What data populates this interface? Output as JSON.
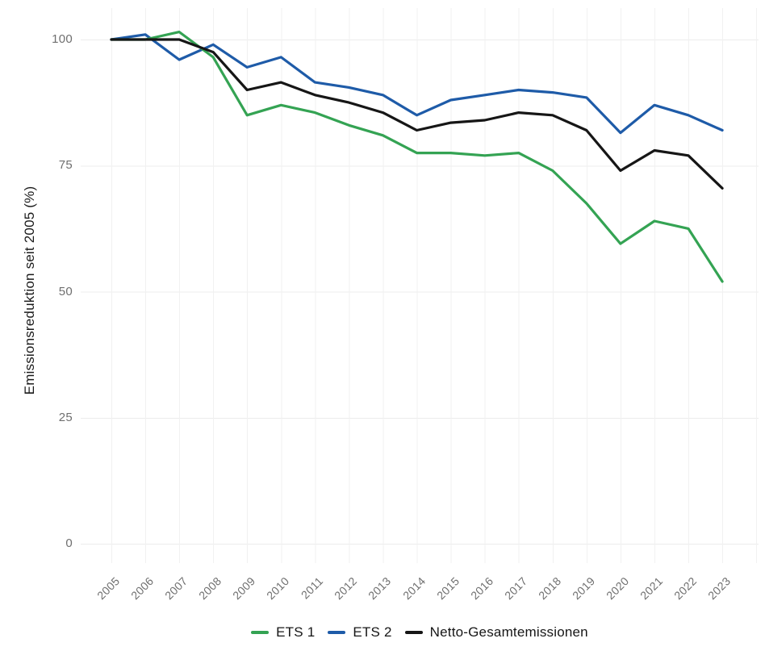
{
  "chart_data": {
    "type": "line",
    "title": "",
    "xlabel": "",
    "ylabel": "Emissionsreduktion seit 2005 (%)",
    "x": [
      2005,
      2006,
      2007,
      2008,
      2009,
      2010,
      2011,
      2012,
      2013,
      2014,
      2015,
      2016,
      2017,
      2018,
      2019,
      2020,
      2021,
      2022,
      2023
    ],
    "series": [
      {
        "name": "ETS 1",
        "color": "#34A353",
        "values": [
          100,
          100,
          101.5,
          96.5,
          85,
          87,
          85.5,
          83,
          81,
          77.5,
          77.5,
          77,
          77.5,
          74,
          67.5,
          59.5,
          64,
          62.5,
          52
        ]
      },
      {
        "name": "ETS 2",
        "color": "#1E5BA8",
        "values": [
          100,
          101,
          96,
          99,
          94.5,
          96.5,
          91.5,
          90.5,
          89,
          85,
          88,
          89,
          90,
          89.5,
          88.5,
          81.5,
          87,
          85,
          82
        ]
      },
      {
        "name": "Netto-Gesamtemissionen",
        "color": "#161616",
        "values": [
          100,
          100,
          100,
          97.5,
          90,
          91.5,
          89,
          87.5,
          85.5,
          82,
          83.5,
          84,
          85.5,
          85,
          82,
          74,
          78,
          77,
          70.5
        ]
      }
    ],
    "yticks": [
      0,
      25,
      50,
      75,
      100
    ],
    "ylim": [
      -4,
      106
    ],
    "grid": true,
    "legend_position": "bottom",
    "colors": {
      "grid_horizontal": "#ececec",
      "grid_vertical": "#f1f1f1",
      "tick_label": "#6f6f6f",
      "axis_title": "#1a1a1a",
      "legend_text": "#161616",
      "background": "#ffffff"
    }
  }
}
